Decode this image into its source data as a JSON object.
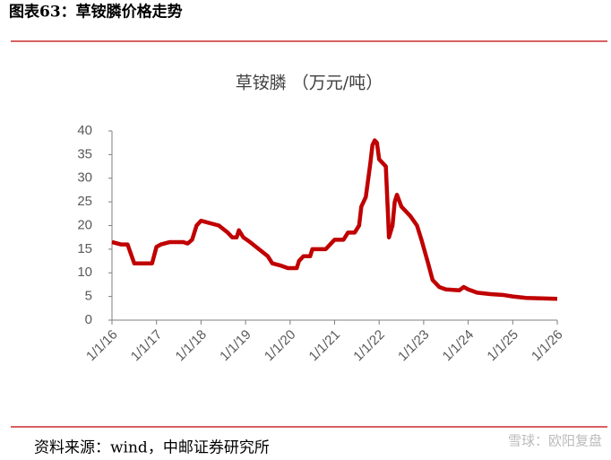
{
  "header": {
    "title": "图表63：草铵膦价格走势"
  },
  "chart_data": {
    "type": "line",
    "title": "草铵膦 （万元/吨）",
    "x": [
      2016.0,
      2016.2,
      2016.35,
      2016.5,
      2016.9,
      2017.0,
      2017.1,
      2017.3,
      2017.6,
      2017.7,
      2017.8,
      2017.9,
      2018.0,
      2018.2,
      2018.4,
      2018.6,
      2018.7,
      2018.8,
      2018.85,
      2018.95,
      2019.1,
      2019.3,
      2019.5,
      2019.6,
      2019.8,
      2019.95,
      2020.15,
      2020.2,
      2020.3,
      2020.45,
      2020.5,
      2020.8,
      2020.9,
      2021.0,
      2021.2,
      2021.3,
      2021.45,
      2021.55,
      2021.6,
      2021.7,
      2021.8,
      2021.85,
      2021.9,
      2021.95,
      2022.0,
      2022.15,
      2022.2,
      2022.22,
      2022.3,
      2022.35,
      2022.4,
      2022.5,
      2022.7,
      2022.85,
      2022.95,
      2023.1,
      2023.2,
      2023.35,
      2023.5,
      2023.8,
      2023.9,
      2024.0,
      2024.2,
      2024.5,
      2024.8,
      2025.0,
      2025.3,
      2026.0
    ],
    "series": [
      {
        "name": "草铵膦",
        "color": "#c00000",
        "values": [
          16.5,
          16,
          16,
          12,
          12,
          15.5,
          16,
          16.5,
          16.5,
          16.2,
          17,
          20,
          21,
          20.5,
          20,
          18.5,
          17.5,
          17.5,
          19,
          17.5,
          16.5,
          15,
          13.5,
          12,
          11.5,
          11,
          11,
          12.5,
          13.5,
          13.5,
          15,
          15,
          16,
          17,
          17,
          18.5,
          18.5,
          20,
          24,
          26,
          33,
          37,
          38,
          37.5,
          34,
          32.5,
          22,
          17.5,
          20,
          25,
          26.5,
          24,
          22,
          20,
          17,
          12,
          8.5,
          7,
          6.5,
          6.3,
          7,
          6.5,
          5.8,
          5.5,
          5.3,
          5,
          4.7,
          4.5
        ]
      }
    ],
    "xlim": [
      2016,
      2026
    ],
    "xticks": [
      {
        "value": 2016,
        "label": "1/1/16"
      },
      {
        "value": 2017,
        "label": "1/1/17"
      },
      {
        "value": 2018,
        "label": "1/1/18"
      },
      {
        "value": 2019,
        "label": "1/1/19"
      },
      {
        "value": 2020,
        "label": "1/1/20"
      },
      {
        "value": 2021,
        "label": "1/1/21"
      },
      {
        "value": 2022,
        "label": "1/1/22"
      },
      {
        "value": 2023,
        "label": "1/1/23"
      },
      {
        "value": 2024,
        "label": "1/1/24"
      },
      {
        "value": 2025,
        "label": "1/1/25"
      },
      {
        "value": 2026,
        "label": "1/1/26"
      }
    ],
    "ylim": [
      0,
      40
    ],
    "yticks": [
      0,
      5,
      10,
      15,
      20,
      25,
      30,
      35,
      40
    ]
  },
  "footer": {
    "source": "资料来源：wind，中邮证券研究所",
    "watermark": "雪球：欧阳复盘"
  }
}
